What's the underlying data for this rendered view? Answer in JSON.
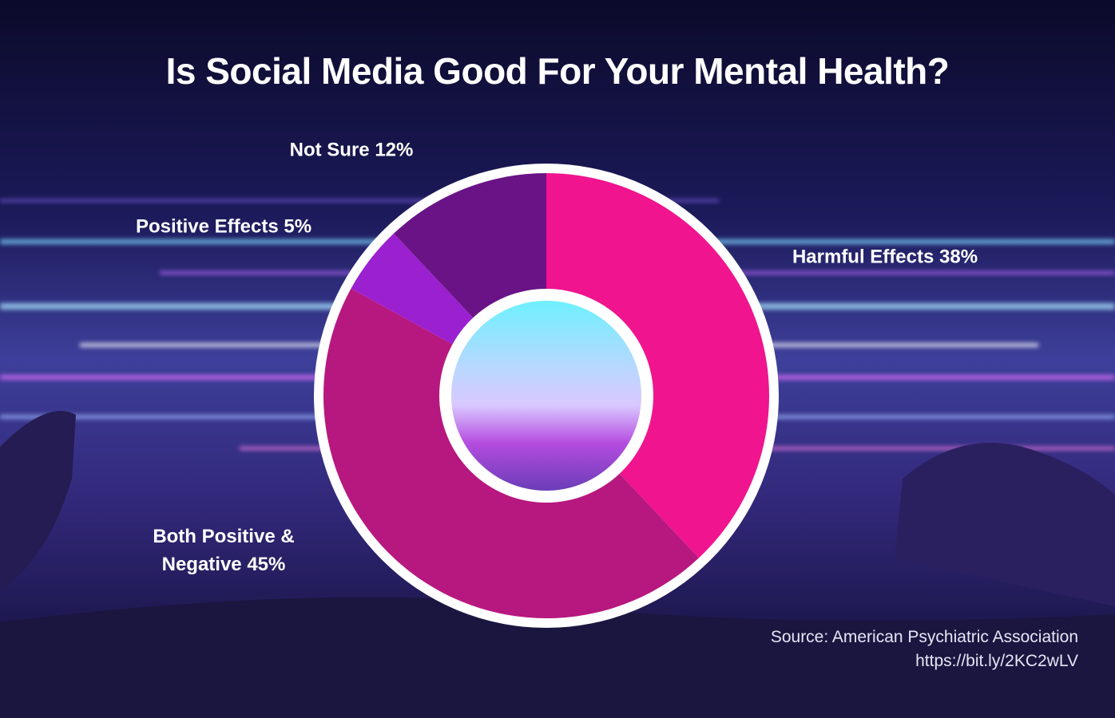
{
  "chart_data": {
    "type": "donut",
    "title": "Is Social Media Good For Your Mental Health?",
    "categories": [
      "Harmful Effects",
      "Both Positive & Negative",
      "Positive Effects",
      "Not Sure"
    ],
    "values": [
      38,
      45,
      5,
      12
    ],
    "value_labels": [
      "38%",
      "45%",
      "5%",
      "12%"
    ],
    "colors": [
      "#f0148e",
      "#b7187f",
      "#9a20d0",
      "#6a1386"
    ],
    "source": "Source: American Psychiatric Association",
    "source_url": "https://bit.ly/2KC2wLV"
  }
}
